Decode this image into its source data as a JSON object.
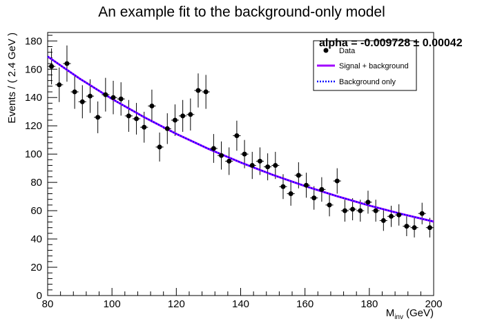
{
  "chart_data": {
    "type": "scatter",
    "title": "An example fit to the background-only model",
    "xlabel": "M",
    "xlabel_sub": "inv",
    "xlabel_unit": "(GeV)",
    "ylabel": "Events / ( 2.4 GeV )",
    "xlim": [
      80,
      200
    ],
    "ylim": [
      0,
      186
    ],
    "x_ticks": [
      80,
      100,
      120,
      140,
      160,
      180,
      200
    ],
    "y_ticks": [
      0,
      20,
      40,
      60,
      80,
      100,
      120,
      140,
      160,
      180
    ],
    "bin_width": 2.4,
    "fit_parameter": {
      "text": "alpha = -0.009728 ± 0.00042"
    },
    "legend": {
      "placement": "top-right",
      "entries": [
        {
          "label": "Data",
          "style": "marker",
          "color": "#000000"
        },
        {
          "label": "Signal + background",
          "style": "solid",
          "color": "#a000ff"
        },
        {
          "label": "Background only",
          "style": "dotted",
          "color": "#0000ff"
        }
      ]
    },
    "series": [
      {
        "name": "Data",
        "kind": "points",
        "x": [
          81.2,
          83.6,
          86.0,
          88.4,
          90.8,
          93.2,
          95.6,
          98.0,
          100.4,
          102.8,
          105.2,
          107.6,
          110.0,
          112.4,
          114.8,
          117.2,
          119.6,
          122.0,
          124.4,
          126.8,
          129.2,
          131.6,
          134.0,
          136.4,
          138.8,
          141.2,
          143.6,
          146.0,
          148.4,
          150.8,
          153.2,
          155.6,
          158.0,
          160.4,
          162.8,
          165.2,
          167.6,
          170.0,
          172.4,
          174.8,
          177.2,
          179.6,
          182.0,
          184.4,
          186.8,
          189.2,
          191.6,
          194.0,
          196.4,
          198.8
        ],
        "y": [
          162,
          149,
          164,
          144,
          137,
          141,
          126,
          142,
          140,
          139,
          127,
          125,
          119,
          134,
          105,
          118,
          124,
          127,
          128,
          145,
          144,
          104,
          99,
          95,
          113,
          100,
          92,
          95,
          91,
          92,
          77,
          72,
          85,
          78,
          69,
          75,
          64,
          81,
          60,
          61,
          60,
          66,
          60,
          53,
          56,
          57,
          49,
          48,
          58,
          48
        ]
      },
      {
        "name": "Signal + background",
        "kind": "curve",
        "x": [
          80,
          90,
          100,
          110,
          120,
          130,
          140,
          150,
          160,
          170,
          180,
          190,
          200
        ],
        "y": [
          169.0,
          153.3,
          139.0,
          126.1,
          114.3,
          103.7,
          94.1,
          85.3,
          77.4,
          70.2,
          63.6,
          57.7,
          52.3
        ]
      },
      {
        "name": "Background only",
        "kind": "curve",
        "x": [
          80,
          90,
          100,
          110,
          120,
          130,
          140,
          150,
          160,
          170,
          180,
          190,
          200
        ],
        "y": [
          169.0,
          153.3,
          139.0,
          126.1,
          114.3,
          103.7,
          94.1,
          85.3,
          77.4,
          70.2,
          63.6,
          57.7,
          52.3
        ]
      }
    ],
    "grid": false
  }
}
